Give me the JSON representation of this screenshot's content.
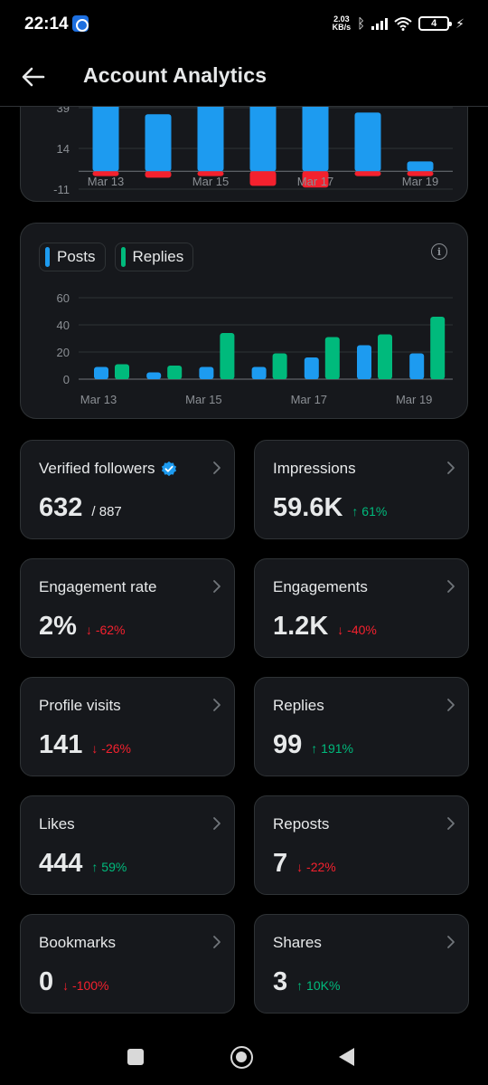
{
  "status_bar": {
    "time": "22:14",
    "net_speed_value": "2.03",
    "net_speed_unit": "KB/s",
    "battery": "4"
  },
  "header": {
    "title": "Account Analytics"
  },
  "chart_data": [
    {
      "type": "bar",
      "stacked_diverging": true,
      "categories": [
        "Mar 13",
        "Mar 14",
        "Mar 15",
        "Mar 16",
        "Mar 17",
        "Mar 18",
        "Mar 19"
      ],
      "x_tick_labels": [
        "Mar 13",
        "Mar 15",
        "Mar 17",
        "Mar 19"
      ],
      "y_tick_labels": [
        "39",
        "14",
        "-11"
      ],
      "ylim": [
        -11,
        39
      ],
      "series": [
        {
          "color": "#1d9bf0",
          "values": [
            42,
            35,
            47,
            47,
            44,
            36,
            6
          ]
        },
        {
          "color": "#f4212e",
          "values": [
            -3,
            -4,
            -3,
            -9,
            -10,
            -3,
            -3
          ]
        }
      ]
    },
    {
      "type": "bar",
      "categories": [
        "Mar 13",
        "Mar 14",
        "Mar 15",
        "Mar 16",
        "Mar 17",
        "Mar 18",
        "Mar 19"
      ],
      "x_tick_labels": [
        "Mar 13",
        "Mar 15",
        "Mar 17",
        "Mar 19"
      ],
      "y_tick_labels": [
        "60",
        "40",
        "20",
        "0"
      ],
      "ylim": [
        0,
        60
      ],
      "legend": [
        "Posts",
        "Replies"
      ],
      "series": [
        {
          "name": "Posts",
          "color": "#1d9bf0",
          "values": [
            9,
            5,
            9,
            9,
            16,
            25,
            19
          ]
        },
        {
          "name": "Replies",
          "color": "#00ba7c",
          "values": [
            11,
            10,
            34,
            19,
            31,
            33,
            46
          ]
        }
      ]
    }
  ],
  "stats": [
    {
      "key": "verified-followers",
      "label": "Verified followers",
      "value": "632",
      "sub": "/ 887",
      "change": "",
      "direction": "",
      "verified": true
    },
    {
      "key": "impressions",
      "label": "Impressions",
      "value": "59.6K",
      "sub": "",
      "change": "61%",
      "direction": "up"
    },
    {
      "key": "engagement-rate",
      "label": "Engagement rate",
      "value": "2%",
      "sub": "",
      "change": "-62%",
      "direction": "down"
    },
    {
      "key": "engagements",
      "label": "Engagements",
      "value": "1.2K",
      "sub": "",
      "change": "-40%",
      "direction": "down"
    },
    {
      "key": "profile-visits",
      "label": "Profile visits",
      "value": "141",
      "sub": "",
      "change": "-26%",
      "direction": "down"
    },
    {
      "key": "replies",
      "label": "Replies",
      "value": "99",
      "sub": "",
      "change": "191%",
      "direction": "up"
    },
    {
      "key": "likes",
      "label": "Likes",
      "value": "444",
      "sub": "",
      "change": "59%",
      "direction": "up"
    },
    {
      "key": "reposts",
      "label": "Reposts",
      "value": "7",
      "sub": "",
      "change": "-22%",
      "direction": "down"
    },
    {
      "key": "bookmarks",
      "label": "Bookmarks",
      "value": "0",
      "sub": "",
      "change": "-100%",
      "direction": "down"
    },
    {
      "key": "shares",
      "label": "Shares",
      "value": "3",
      "sub": "",
      "change": "10K%",
      "direction": "up"
    }
  ],
  "icons": {
    "up_arrow": "↑",
    "down_arrow": "↓",
    "info": "i"
  }
}
